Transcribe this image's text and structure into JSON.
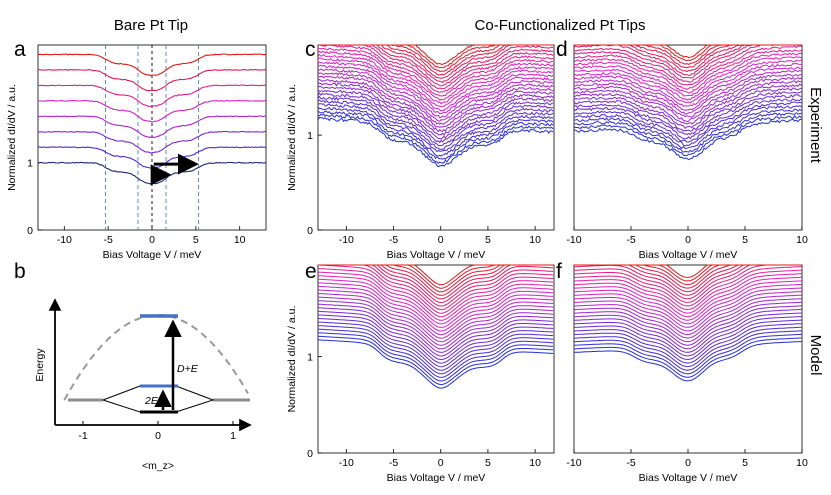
{
  "headers": {
    "left": "Bare Pt Tip",
    "right": "Co-Functionalized Pt Tips"
  },
  "side_labels": {
    "top": "Experiment",
    "bottom": "Model"
  },
  "panel_labels": {
    "a": "a",
    "b": "b",
    "c": "c",
    "d": "d",
    "e": "e",
    "f": "f"
  },
  "colors": {
    "bottom": "#1f2fd8",
    "middle": "#e020c8",
    "top": "#e01818",
    "dashed": "#4a7fd0",
    "arrow": "#000000",
    "parabola": "#9a9a9a",
    "level": "#4472c4",
    "baseline": "#8c8c8c"
  },
  "chart_data": [
    {
      "id": "a",
      "type": "line",
      "title": "Bare Pt Tip",
      "xlabel": "Bias Voltage V / meV",
      "ylabel": "Normalized dI/dV / a.u.",
      "xlim": [
        -13,
        13
      ],
      "ylim": [
        0,
        2.75
      ],
      "xticks": [
        "-10",
        "-5",
        "0",
        "5",
        "10"
      ],
      "xtick_values": [
        -10,
        -5,
        0,
        5,
        10
      ],
      "yticks": [
        "0",
        "1"
      ],
      "ytick_values": [
        0,
        1
      ],
      "n_series": 8,
      "offset": 0.23,
      "steps": [
        {
          "e": 1.6,
          "h": 0.18
        },
        {
          "e": 5.3,
          "h": 0.14
        }
      ],
      "dashed_lines_x": [
        -5.3,
        -1.6,
        1.6,
        5.3
      ],
      "center_line_x": 0
    },
    {
      "id": "b",
      "type": "diagram",
      "xlabel": "<m_z>",
      "ylabel": "Energy",
      "xticks": [
        "-1",
        "0",
        "1"
      ],
      "xtick_values": [
        -1,
        0,
        1
      ],
      "annotations": [
        "2E",
        "D+E"
      ]
    },
    {
      "id": "c",
      "type": "line",
      "panel_title": "Co-Functionalized Pt Tips",
      "row": "Experiment",
      "xlabel": "Bias Voltage V / meV",
      "ylabel": "Normalized dI/dV / a.u.",
      "xlim": [
        -13,
        12
      ],
      "ylim": [
        0,
        1.95
      ],
      "xticks": [
        "-10",
        "-5",
        "0",
        "5",
        "10"
      ],
      "xtick_values": [
        -10,
        -5,
        0,
        5,
        10
      ],
      "yticks": [
        "0",
        "1"
      ],
      "ytick_values": [
        0,
        1
      ],
      "n_series": 30,
      "offset": 0.037,
      "tilt": -0.02,
      "edges": [
        -6.5,
        -2.5,
        2.5,
        6.5
      ],
      "step_low": 0.15,
      "step_high": 0.22,
      "noisy": true
    },
    {
      "id": "d",
      "type": "line",
      "row": "Experiment",
      "xlabel": "Bias Voltage V / meV",
      "ylabel": "",
      "xlim": [
        -10,
        10
      ],
      "ylim": [
        0,
        1.95
      ],
      "xticks": [
        "-10",
        "-5",
        "0",
        "5",
        "10"
      ],
      "xtick_values": [
        -10,
        -5,
        0,
        5,
        10
      ],
      "yticks": [],
      "ytick_values": [],
      "n_series": 30,
      "offset": 0.037,
      "tilt": 0.02,
      "edges": [
        -4.7,
        -1.6,
        1.6,
        4.7
      ],
      "step_low": 0.13,
      "step_high": 0.18,
      "noisy": true
    },
    {
      "id": "e",
      "type": "line",
      "row": "Model",
      "xlabel": "Bias Voltage V / meV",
      "ylabel": "Normalized dI/dV / a.u.",
      "xlim": [
        -13,
        12
      ],
      "ylim": [
        0,
        1.95
      ],
      "xticks": [
        "-10",
        "-5",
        "0",
        "5",
        "10"
      ],
      "xtick_values": [
        -10,
        -5,
        0,
        5,
        10
      ],
      "yticks": [
        "0",
        "1"
      ],
      "ytick_values": [
        0,
        1
      ],
      "n_series": 30,
      "offset": 0.037,
      "tilt": -0.02,
      "edges": [
        -6.5,
        -2.5,
        2.5,
        6.5
      ],
      "step_low": 0.15,
      "step_high": 0.22,
      "noisy": false
    },
    {
      "id": "f",
      "type": "line",
      "row": "Model",
      "xlabel": "Bias Voltage V / meV",
      "ylabel": "",
      "xlim": [
        -10,
        10
      ],
      "ylim": [
        0,
        1.95
      ],
      "xticks": [
        "-10",
        "-5",
        "0",
        "5",
        "10"
      ],
      "xtick_values": [
        -10,
        -5,
        0,
        5,
        10
      ],
      "yticks": [],
      "ytick_values": [],
      "n_series": 30,
      "offset": 0.037,
      "tilt": 0.02,
      "edges": [
        -4.7,
        -1.6,
        1.6,
        4.7
      ],
      "step_low": 0.13,
      "step_high": 0.18,
      "noisy": false
    }
  ]
}
